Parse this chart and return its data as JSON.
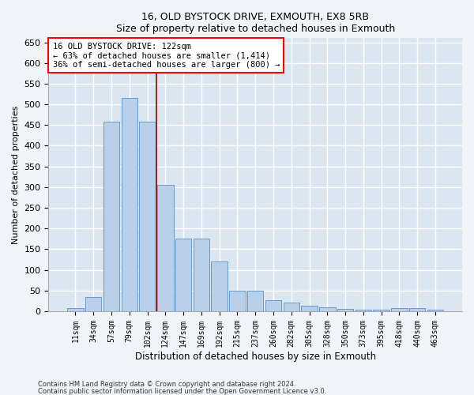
{
  "title1": "16, OLD BYSTOCK DRIVE, EXMOUTH, EX8 5RB",
  "title2": "Size of property relative to detached houses in Exmouth",
  "xlabel": "Distribution of detached houses by size in Exmouth",
  "ylabel": "Number of detached properties",
  "categories": [
    "11sqm",
    "34sqm",
    "57sqm",
    "79sqm",
    "102sqm",
    "124sqm",
    "147sqm",
    "169sqm",
    "192sqm",
    "215sqm",
    "237sqm",
    "260sqm",
    "282sqm",
    "305sqm",
    "328sqm",
    "350sqm",
    "373sqm",
    "395sqm",
    "418sqm",
    "440sqm",
    "463sqm"
  ],
  "values": [
    7,
    35,
    458,
    515,
    458,
    305,
    175,
    175,
    120,
    50,
    50,
    27,
    20,
    13,
    9,
    5,
    3,
    3,
    7,
    7,
    4
  ],
  "bar_color": "#b8d0ea",
  "bar_edge_color": "#6699cc",
  "background_color": "#dce6f0",
  "grid_color": "#ffffff",
  "property_line_x": 4.5,
  "annotation_line1": "16 OLD BYSTOCK DRIVE: 122sqm",
  "annotation_line2": "← 63% of detached houses are smaller (1,414)",
  "annotation_line3": "36% of semi-detached houses are larger (800) →",
  "footer1": "Contains HM Land Registry data © Crown copyright and database right 2024.",
  "footer2": "Contains public sector information licensed under the Open Government Licence v3.0.",
  "ylim": [
    0,
    660
  ],
  "yticks": [
    0,
    50,
    100,
    150,
    200,
    250,
    300,
    350,
    400,
    450,
    500,
    550,
    600,
    650
  ]
}
